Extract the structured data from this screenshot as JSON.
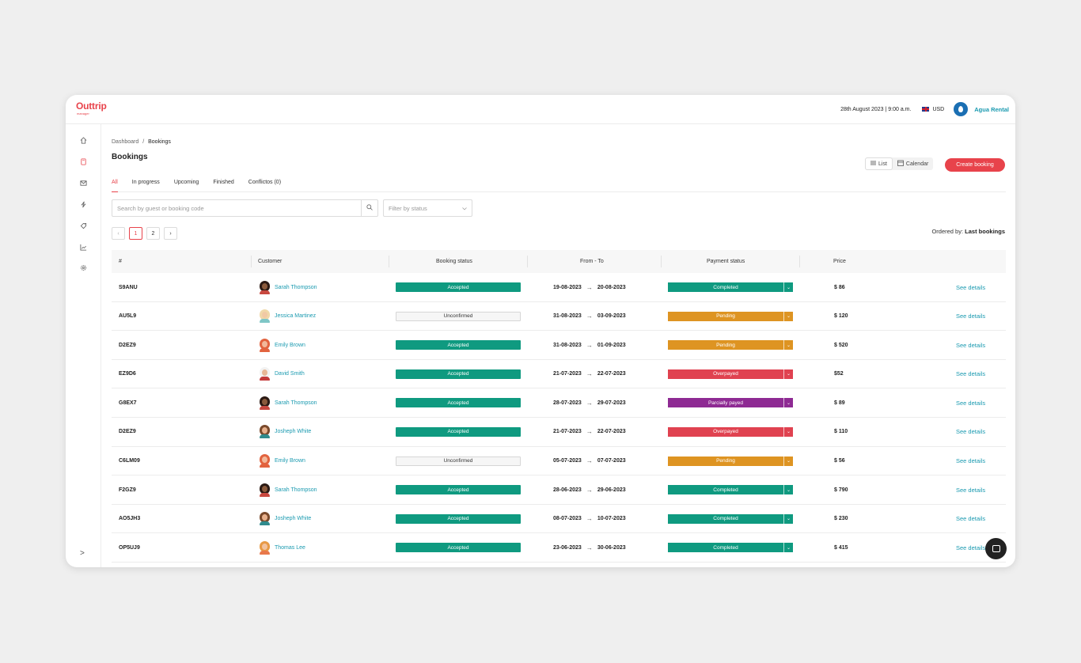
{
  "brand": {
    "name": "Outtrip",
    "sub": "manager",
    "color": "#e8434b"
  },
  "header": {
    "date": "28th August 2023 | 9:00 a.m.",
    "currency": "USD",
    "company": "Agua Rental"
  },
  "sidebar": {
    "icons": [
      "home-icon",
      "bookings-icon",
      "mail-icon",
      "bolt-icon",
      "tag-icon",
      "chart-icon",
      "settings-icon"
    ],
    "collapse": ">"
  },
  "breadcrumb": {
    "root": "Dashboard",
    "sep": "/",
    "current": "Bookings"
  },
  "page": {
    "title": "Bookings"
  },
  "view": {
    "list": "List",
    "calendar": "Calendar"
  },
  "create_label": "Create booking",
  "tabs": [
    {
      "label": "All",
      "active": true
    },
    {
      "label": "In progress"
    },
    {
      "label": "Upcoming"
    },
    {
      "label": "Finished"
    },
    {
      "label": "Conflictos (0)"
    }
  ],
  "search": {
    "placeholder": "Search by guest or booking code"
  },
  "filter": {
    "placeholder": "Filter by status"
  },
  "pagination": {
    "prev": "‹",
    "pages": [
      "1",
      "2"
    ],
    "current": "1",
    "next": "›"
  },
  "ordered": {
    "label": "Ordered by:",
    "value": "Last bookings"
  },
  "table": {
    "headers": [
      "#",
      "Customer",
      "Booking status",
      "From - To",
      "Payment status",
      "Price"
    ],
    "details_label": "See details",
    "rows": [
      {
        "code": "S9ANU",
        "customer": "Sarah Thompson",
        "avatar": "sarah",
        "booking": "Accepted",
        "from": "19-08-2023",
        "to": "20-08-2023",
        "payment": "Completed",
        "price": "$ 86"
      },
      {
        "code": "AU5L9",
        "customer": "Jessica Martinez",
        "avatar": "jessica",
        "booking": "Unconfirmed",
        "from": "31-08-2023",
        "to": "03-09-2023",
        "payment": "Pending",
        "price": "$ 120"
      },
      {
        "code": "D2EZ9",
        "customer": "Emily Brown",
        "avatar": "emily",
        "booking": "Accepted",
        "from": "31-08-2023",
        "to": "01-09-2023",
        "payment": "Pending",
        "price": "$ 520"
      },
      {
        "code": "EZ9D6",
        "customer": "David Smith",
        "avatar": "david",
        "booking": "Accepted",
        "from": "21-07-2023",
        "to": "22-07-2023",
        "payment": "Overpayed",
        "price": "$52"
      },
      {
        "code": "G8EX7",
        "customer": "Sarah Thompson",
        "avatar": "sarah",
        "booking": "Accepted",
        "from": "28-07-2023",
        "to": "29-07-2023",
        "payment": "Parcially payed",
        "price": "$ 89"
      },
      {
        "code": "D2EZ9",
        "customer": "Josheph White",
        "avatar": "joseph",
        "booking": "Accepted",
        "from": "21-07-2023",
        "to": "22-07-2023",
        "payment": "Overpayed",
        "price": "$ 110"
      },
      {
        "code": "C6LM09",
        "customer": "Emily Brown",
        "avatar": "emily",
        "booking": "Unconfirmed",
        "from": "05-07-2023",
        "to": "07-07-2023",
        "payment": "Pending",
        "price": "$ 56"
      },
      {
        "code": "F2GZ9",
        "customer": "Sarah Thompson",
        "avatar": "sarah",
        "booking": "Accepted",
        "from": "28-06-2023",
        "to": "29-06-2023",
        "payment": "Completed",
        "price": "$ 790"
      },
      {
        "code": "AO5JH3",
        "customer": "Josheph White",
        "avatar": "joseph",
        "booking": "Accepted",
        "from": "08-07-2023",
        "to": "10-07-2023",
        "payment": "Completed",
        "price": "$ 230"
      },
      {
        "code": "OP5UJ9",
        "customer": "Thomas Lee",
        "avatar": "thomas",
        "booking": "Accepted",
        "from": "23-06-2023",
        "to": "30-06-2023",
        "payment": "Completed",
        "price": "$ 415"
      }
    ]
  },
  "payment_colors": {
    "Completed": "#0f9a80",
    "Pending": "#de9422",
    "Overpayed": "#e04250",
    "Parcially payed": "#8e2a93"
  },
  "avatar_colors": {
    "sarah": {
      "hair": "#2b1a14",
      "skin": "#8a5a3c",
      "body": "#c8483f"
    },
    "jessica": {
      "hair": "#f0d8a8",
      "skin": "#f1c9a5",
      "body": "#7fc6c6"
    },
    "emily": {
      "hair": "#e2633f",
      "skin": "#f2b89a",
      "body": "#e2633f"
    },
    "david": {
      "hair": "#f2f2f2",
      "skin": "#e8b796",
      "body": "#c43b3b"
    },
    "joseph": {
      "hair": "#7a4a2c",
      "skin": "#e7b08c",
      "body": "#2f8a8c"
    },
    "thomas": {
      "hair": "#e79a45",
      "skin": "#f2c29e",
      "body": "#e8784b"
    }
  }
}
